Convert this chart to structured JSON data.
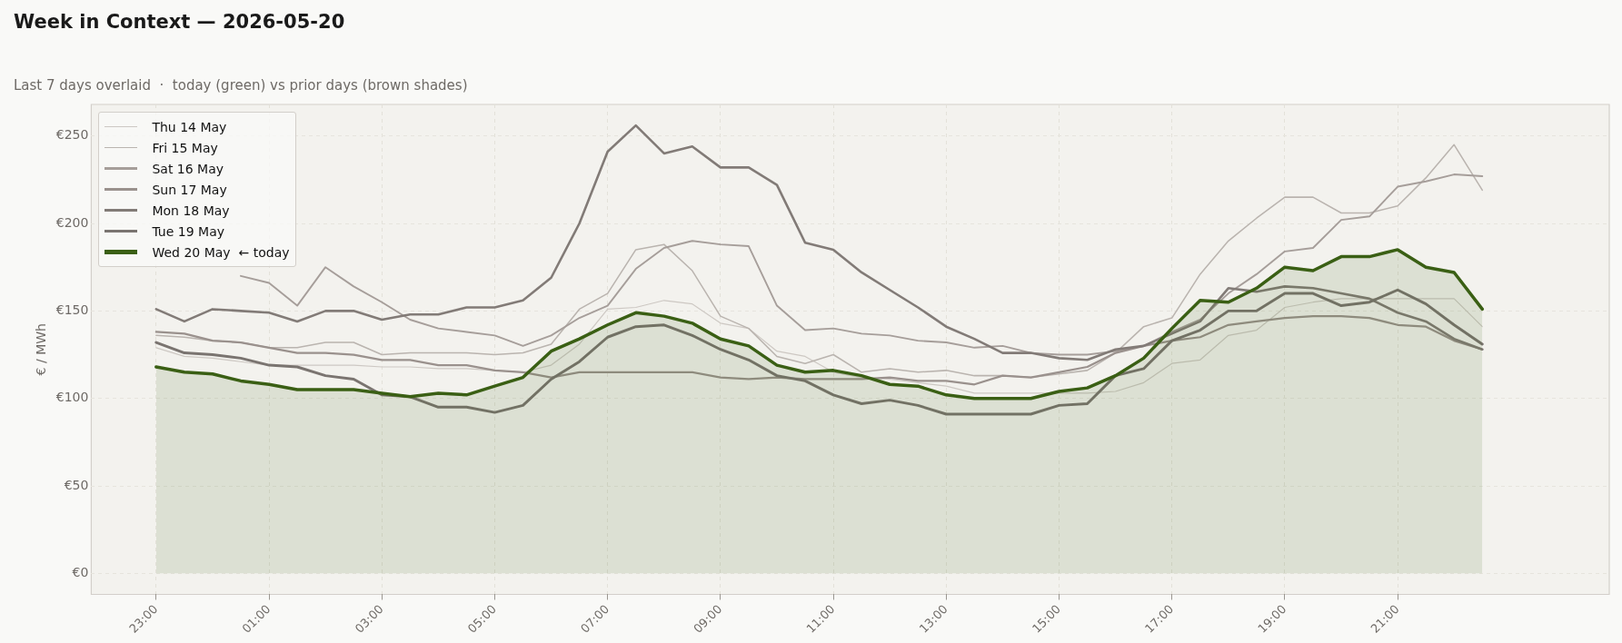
{
  "chart_data": {
    "type": "line",
    "title": "Week in Context — 2026-05-20",
    "subtitle": "Last 7 days overlaid  ·  today (green) vs prior days (brown shades)",
    "ylabel": "€ / MWh",
    "categories": [
      "23:00",
      null,
      null,
      null,
      "01:00",
      null,
      null,
      null,
      "03:00",
      null,
      null,
      null,
      "05:00",
      null,
      null,
      null,
      "07:00",
      null,
      null,
      null,
      "09:00",
      null,
      null,
      null,
      "11:00",
      null,
      null,
      null,
      "13:00",
      null,
      null,
      null,
      "15:00",
      null,
      null,
      null,
      "17:00",
      null,
      null,
      null,
      "19:00",
      null,
      null,
      null,
      "21:00",
      null,
      null,
      null
    ],
    "ylim": [
      -12,
      268
    ],
    "yticks": [
      {
        "value": 0,
        "label": "€0"
      },
      {
        "value": 50,
        "label": "€50"
      },
      {
        "value": 100,
        "label": "€100"
      },
      {
        "value": 150,
        "label": "€150"
      },
      {
        "value": 200,
        "label": "€200"
      },
      {
        "value": 250,
        "label": "€250"
      }
    ],
    "grid": true,
    "legend": "top left",
    "marker": "none",
    "line_style": "solid",
    "series": [
      {
        "name": "Thu 14 May",
        "color": "#cdc8c3",
        "type": "line",
        "values": [
          129,
          124,
          123,
          121,
          119,
          119,
          119,
          119,
          118,
          118,
          117,
          117,
          116,
          115,
          119,
          131,
          151,
          152,
          156,
          154,
          143,
          140,
          127,
          124,
          115,
          112,
          111,
          109,
          107,
          103,
          103,
          103,
          103,
          103,
          104,
          109,
          120,
          122,
          136,
          139,
          152,
          155,
          157,
          157,
          157,
          157,
          157,
          141
        ]
      },
      {
        "name": "Fri 15 May",
        "color": "#bab4af",
        "type": "line",
        "values": [
          136,
          135,
          133,
          132,
          129,
          129,
          132,
          132,
          125,
          126,
          126,
          126,
          125,
          126,
          131,
          151,
          160,
          185,
          188,
          173,
          147,
          140,
          124,
          120,
          125,
          115,
          117,
          115,
          116,
          113,
          113,
          112,
          114,
          116,
          126,
          141,
          146,
          171,
          190,
          203,
          215,
          215,
          206,
          206,
          210,
          226,
          245,
          219
        ]
      },
      {
        "name": "Sat 16 May",
        "color": "#a69e9a",
        "type": "line",
        "values": [
          null,
          null,
          null,
          170,
          166,
          153,
          175,
          164,
          155,
          145,
          140,
          138,
          136,
          130,
          136,
          146,
          153,
          174,
          186,
          190,
          188,
          187,
          153,
          139,
          140,
          137,
          136,
          133,
          132,
          129,
          130,
          126,
          125,
          125,
          127,
          130,
          138,
          145,
          160,
          171,
          184,
          186,
          202,
          204,
          221,
          224,
          228,
          227
        ]
      },
      {
        "name": "Sun 17 May",
        "color": "#9a918d",
        "type": "line",
        "values": [
          138,
          137,
          133,
          132,
          129,
          126,
          126,
          125,
          122,
          122,
          119,
          119,
          116,
          115,
          112,
          115,
          115,
          115,
          115,
          115,
          112,
          111,
          112,
          111,
          111,
          111,
          112,
          110,
          110,
          108,
          113,
          112,
          115,
          118,
          126,
          130,
          133,
          135,
          142,
          144,
          146,
          147,
          147,
          146,
          142,
          141,
          133,
          128
        ]
      },
      {
        "name": "Mon 18 May",
        "color": "#827b77",
        "type": "line",
        "values": [
          151,
          144,
          151,
          150,
          149,
          144,
          150,
          150,
          145,
          148,
          148,
          152,
          152,
          156,
          169,
          200,
          241,
          256,
          240,
          244,
          232,
          232,
          222,
          189,
          185,
          172,
          162,
          152,
          141,
          134,
          126,
          126,
          123,
          122,
          128,
          130,
          137,
          144,
          163,
          161,
          164,
          163,
          160,
          157,
          149,
          144,
          134,
          128
        ]
      },
      {
        "name": "Tue 19 May",
        "color": "#7a7470",
        "type": "line",
        "values": [
          132,
          126,
          125,
          123,
          119,
          118,
          113,
          111,
          102,
          101,
          95,
          95,
          92,
          96,
          111,
          121,
          135,
          141,
          142,
          136,
          128,
          122,
          113,
          110,
          102,
          97,
          99,
          96,
          91,
          91,
          91,
          91,
          96,
          97,
          113,
          117,
          133,
          139,
          150,
          150,
          160,
          160,
          153,
          155,
          162,
          154,
          142,
          131
        ]
      },
      {
        "name": "Wed 20 May  ← today",
        "color": "#3a5f14",
        "type": "area",
        "values": [
          118,
          115,
          114,
          110,
          108,
          105,
          105,
          105,
          103,
          101,
          103,
          102,
          107,
          112,
          127,
          134,
          142,
          149,
          147,
          143,
          134,
          130,
          119,
          115,
          116,
          113,
          108,
          107,
          102,
          100,
          100,
          100,
          104,
          106,
          113,
          123,
          140,
          156,
          155,
          163,
          175,
          173,
          181,
          181,
          185,
          175,
          172,
          151
        ]
      }
    ]
  }
}
